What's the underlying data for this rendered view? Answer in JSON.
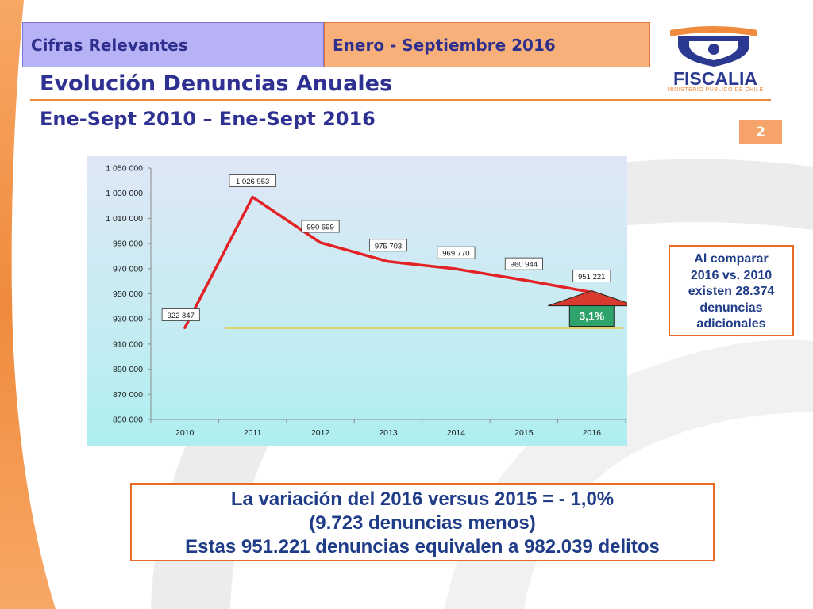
{
  "header": {
    "left_label": "Cifras Relevantes",
    "right_label": "Enero - Septiembre 2016"
  },
  "title": "Evolución Denuncias Anuales",
  "subtitle": "Ene-Sept 2010 – Ene-Sept 2016",
  "page_number": "2",
  "logo": {
    "name": "FISCALIA",
    "tagline": "MINISTERIO PUBLICO DE CHILE"
  },
  "colors": {
    "accent_orange": "#e86a24",
    "title_blue": "#2e3192",
    "series_red": "#e32226",
    "baseline_yellow": "#d9d36a",
    "arrow_red": "#d83a2e",
    "arrow_green": "#2ea36b"
  },
  "chart_data": {
    "type": "line",
    "title": "",
    "xlabel": "",
    "ylabel": "",
    "categories": [
      "2010",
      "2011",
      "2012",
      "2013",
      "2014",
      "2015",
      "2016"
    ],
    "series": [
      {
        "values": [
          922847,
          1026953,
          990699,
          975703,
          969770,
          960944,
          951221
        ],
        "data_labels": [
          "922 847",
          "1 026 953",
          "990 699",
          "975 703",
          "969 770",
          "960 944",
          "951 221"
        ]
      }
    ],
    "ylim": [
      850000,
      1050000
    ],
    "yticks": [
      850000,
      870000,
      890000,
      910000,
      930000,
      950000,
      970000,
      990000,
      1010000,
      1030000,
      1050000
    ],
    "ytick_labels": [
      "850 000",
      "870 000",
      "890 000",
      "910 000",
      "930 000",
      "950 000",
      "970 000",
      "990 000",
      "1 010 000",
      "1 030 000",
      "1 050 000"
    ],
    "baseline": {
      "value": 922847
    },
    "change_annotation": {
      "label": "3,1%",
      "from": "2010",
      "to": "2016"
    },
    "grid": false,
    "legend": "none"
  },
  "note": {
    "lines": [
      "Al comparar",
      "2016 vs. 2010",
      "existen 28.374",
      "denuncias",
      "adicionales"
    ]
  },
  "summary": {
    "lines": [
      "La variación del 2016 versus 2015 = - 1,0%",
      "(9.723 denuncias menos)",
      "Estas 951.221 denuncias equivalen a 982.039 delitos"
    ]
  }
}
